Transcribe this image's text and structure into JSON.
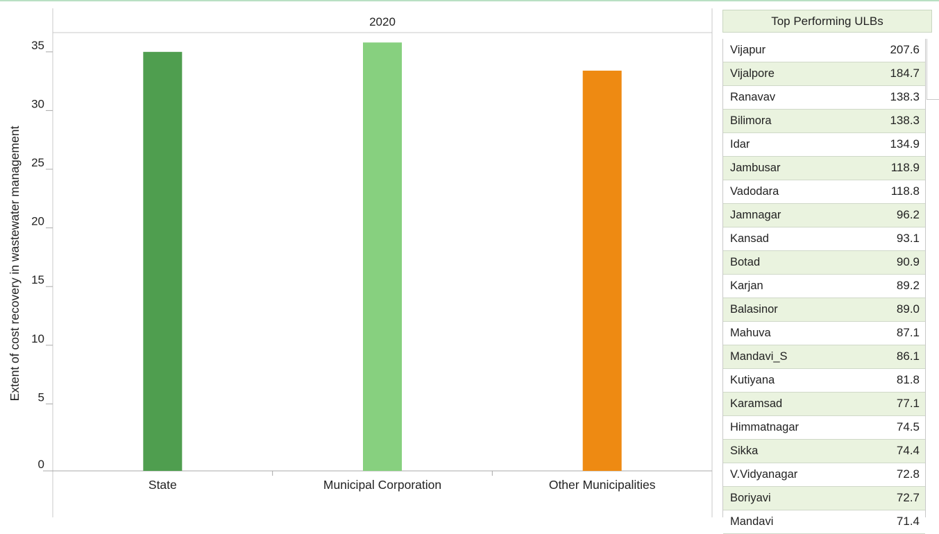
{
  "chart_data": {
    "type": "bar",
    "title": "2020",
    "ylabel": "Extent of cost recovery in wastewater management",
    "xlabel": "",
    "categories": [
      "State",
      "Municipal Corporation",
      "Other Municipalities"
    ],
    "values": [
      35.0,
      35.8,
      33.4
    ],
    "colors": [
      "#4f9e4f",
      "#87d07f",
      "#ee8a12"
    ],
    "ylim": [
      0,
      37.5
    ],
    "yticks": [
      0,
      5,
      10,
      15,
      20,
      25,
      30,
      35
    ],
    "grid": false,
    "legend": "none"
  },
  "panel": {
    "title": "Top Performing ULBs",
    "rows": [
      {
        "name": "Vijapur",
        "value": "207.6"
      },
      {
        "name": "Vijalpore",
        "value": "184.7"
      },
      {
        "name": "Ranavav",
        "value": "138.3"
      },
      {
        "name": "Bilimora",
        "value": "138.3"
      },
      {
        "name": "Idar",
        "value": "134.9"
      },
      {
        "name": "Jambusar",
        "value": "118.9"
      },
      {
        "name": "Vadodara",
        "value": "118.8"
      },
      {
        "name": "Jamnagar",
        "value": "96.2"
      },
      {
        "name": "Kansad",
        "value": "93.1"
      },
      {
        "name": "Botad",
        "value": "90.9"
      },
      {
        "name": "Karjan",
        "value": "89.2"
      },
      {
        "name": "Balasinor",
        "value": "89.0"
      },
      {
        "name": "Mahuva",
        "value": "87.1"
      },
      {
        "name": "Mandavi_S",
        "value": "86.1"
      },
      {
        "name": "Kutiyana",
        "value": "81.8"
      },
      {
        "name": "Karamsad",
        "value": "77.1"
      },
      {
        "name": "Himmatnagar",
        "value": "74.5"
      },
      {
        "name": "Sikka",
        "value": "74.4"
      },
      {
        "name": "V.Vidyanagar",
        "value": "72.8"
      },
      {
        "name": "Boriyavi",
        "value": "72.7"
      },
      {
        "name": "Mandavi",
        "value": "71.4"
      }
    ]
  }
}
